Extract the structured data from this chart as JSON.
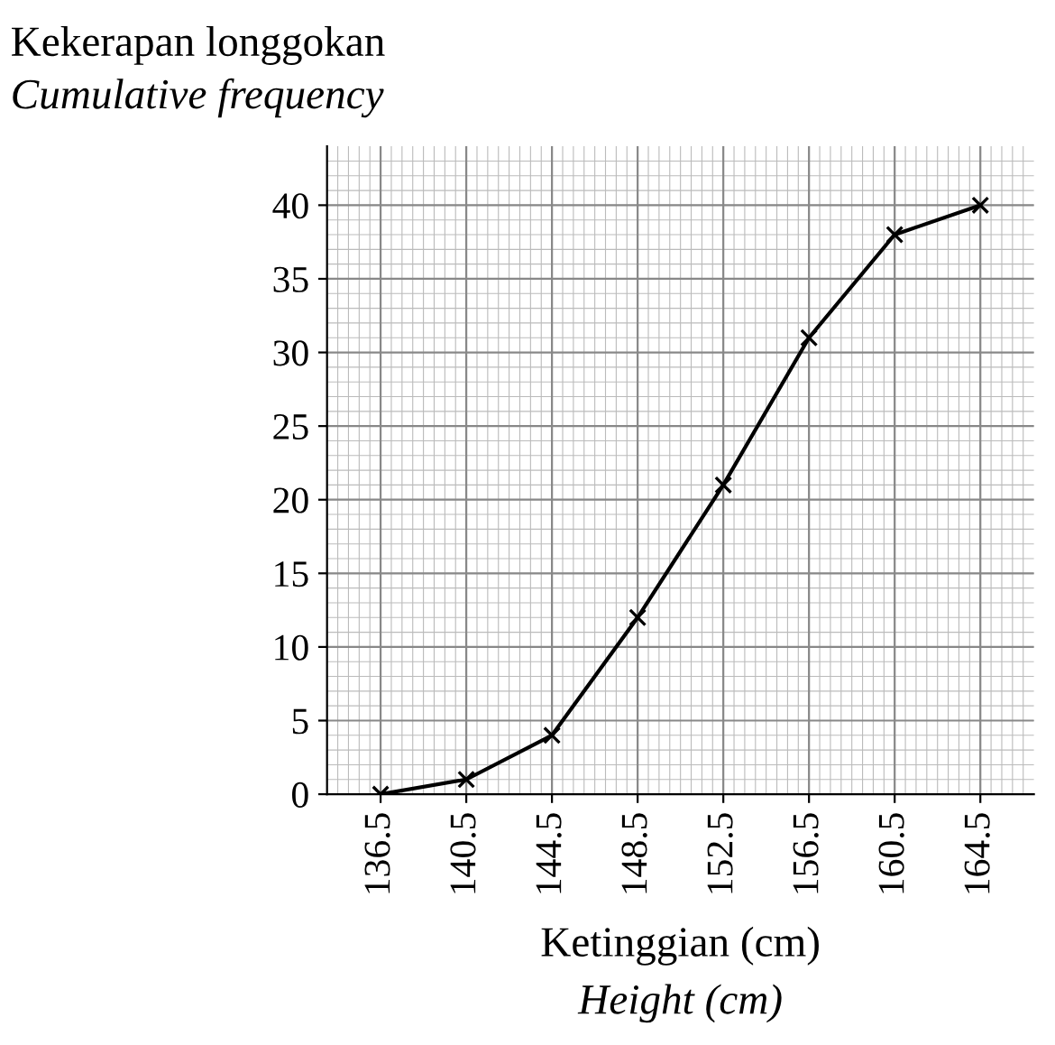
{
  "chart_data": {
    "type": "line",
    "ylabel": "Kekerapan longgokan\nCumulative frequency",
    "xlabel": "Ketinggian (cm)\nHeight (cm)",
    "x": [
      136.5,
      140.5,
      144.5,
      148.5,
      152.5,
      156.5,
      160.5,
      164.5
    ],
    "series": [
      {
        "color": "#000000",
        "values": [
          0,
          1,
          4,
          12,
          21,
          31,
          38,
          40
        ]
      }
    ],
    "xlim": [
      134,
      167
    ],
    "ylim": [
      0,
      44
    ],
    "xticks": [
      136.5,
      140.5,
      144.5,
      148.5,
      152.5,
      156.5,
      160.5,
      164.5
    ],
    "yticks": [
      0,
      5,
      10,
      15,
      20,
      25,
      30,
      35,
      40
    ],
    "grid": true,
    "marker": "cross",
    "line_style": "solid"
  }
}
